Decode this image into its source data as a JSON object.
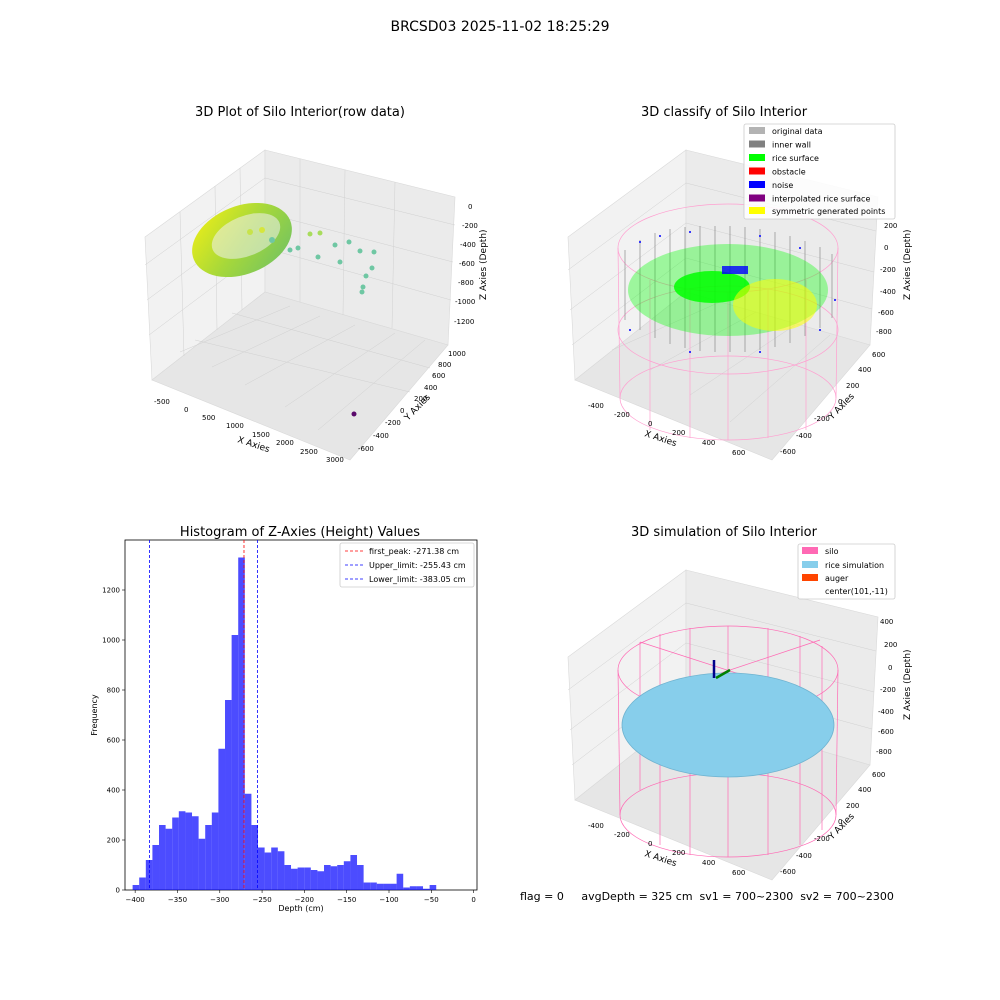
{
  "figure": {
    "suptitle": "BRCSD03 2025-11-02 18:25:29",
    "footer": "flag = 0     avgDepth = 325 cm  sv1 = 700~2300  sv2 = 700~2300"
  },
  "panels": {
    "raw": {
      "title": "3D Plot of Silo Interior(row data)",
      "xlabel": "X Axies",
      "ylabel": "Y Axies",
      "zlabel": "Z Axies (Depth)",
      "xticks": [
        "-500",
        "0",
        "500",
        "1000",
        "1500",
        "2000",
        "2500",
        "3000"
      ],
      "yticks": [
        "-600",
        "-400",
        "-200",
        "0",
        "200",
        "400",
        "600",
        "800",
        "1000"
      ],
      "zticks": [
        "0",
        "-200",
        "-400",
        "-600",
        "-800",
        "-1000",
        "-1200"
      ]
    },
    "classify": {
      "title": "3D classify of Silo Interior",
      "xlabel": "X Axies",
      "ylabel": "Y Axies",
      "zlabel": "Z Axies (Depth)",
      "xticks": [
        "-400",
        "-200",
        "0",
        "200",
        "400",
        "600"
      ],
      "yticks": [
        "-600",
        "-400",
        "-200",
        "0",
        "200",
        "400",
        "600"
      ],
      "zticks": [
        "200",
        "0",
        "-200",
        "-400",
        "-600",
        "-800"
      ],
      "legend": [
        {
          "label": "original data",
          "color": "#b3b3b3"
        },
        {
          "label": "inner wall",
          "color": "#808080"
        },
        {
          "label": "rice surface",
          "color": "#00ff00"
        },
        {
          "label": "obstacle",
          "color": "#ff0000"
        },
        {
          "label": "noise",
          "color": "#0000ff"
        },
        {
          "label": "interpolated rice surface",
          "color": "#800080"
        },
        {
          "label": "symmetric generated points",
          "color": "#ffff00"
        }
      ]
    },
    "simulation": {
      "title": "3D simulation of Silo Interior",
      "xlabel": "X Axies",
      "ylabel": "Y Axies",
      "zlabel": "Z Axies (Depth)",
      "xticks": [
        "-400",
        "-200",
        "0",
        "200",
        "400",
        "600"
      ],
      "yticks": [
        "-600",
        "-400",
        "-200",
        "0",
        "200",
        "400",
        "600"
      ],
      "zticks": [
        "400",
        "200",
        "0",
        "-200",
        "-400",
        "-600",
        "-800"
      ],
      "legend": [
        {
          "label": "silo",
          "color": "#ff69b4"
        },
        {
          "label": "rice simulation",
          "color": "#87ceeb"
        },
        {
          "label": "auger",
          "color": "#ff4500"
        },
        {
          "label": "center(101,-11)",
          "color": ""
        }
      ]
    }
  },
  "chart_data": {
    "type": "bar",
    "title": "Histogram of Z-Axies (Height) Values",
    "xlabel": "Depth (cm)",
    "ylabel": "Frequency",
    "xlim": [
      -412,
      4
    ],
    "ylim": [
      0,
      1400
    ],
    "xticks": [
      -400,
      -350,
      -300,
      -250,
      -200,
      -150,
      -100,
      -50,
      0
    ],
    "yticks": [
      0,
      200,
      400,
      600,
      800,
      1000,
      1200
    ],
    "bar_color": "#0000ff",
    "bin_start": -403,
    "bin_width": 7.8,
    "values": [
      20,
      50,
      120,
      180,
      260,
      245,
      290,
      315,
      310,
      295,
      205,
      260,
      310,
      565,
      760,
      1020,
      1330,
      385,
      260,
      170,
      150,
      170,
      155,
      100,
      85,
      90,
      90,
      80,
      75,
      100,
      95,
      100,
      115,
      140,
      100,
      30,
      30,
      25,
      25,
      25,
      65,
      10,
      15,
      15,
      5,
      20
    ],
    "lines": [
      {
        "label": "first_peak: -271.38 cm",
        "x": -271.38,
        "color": "#ff0000"
      },
      {
        "label": "Upper_limit: -255.43 cm",
        "x": -255.43,
        "color": "#0000ff"
      },
      {
        "label": "Lower_limit: -383.05 cm",
        "x": -383.05,
        "color": "#0000ff"
      }
    ]
  }
}
